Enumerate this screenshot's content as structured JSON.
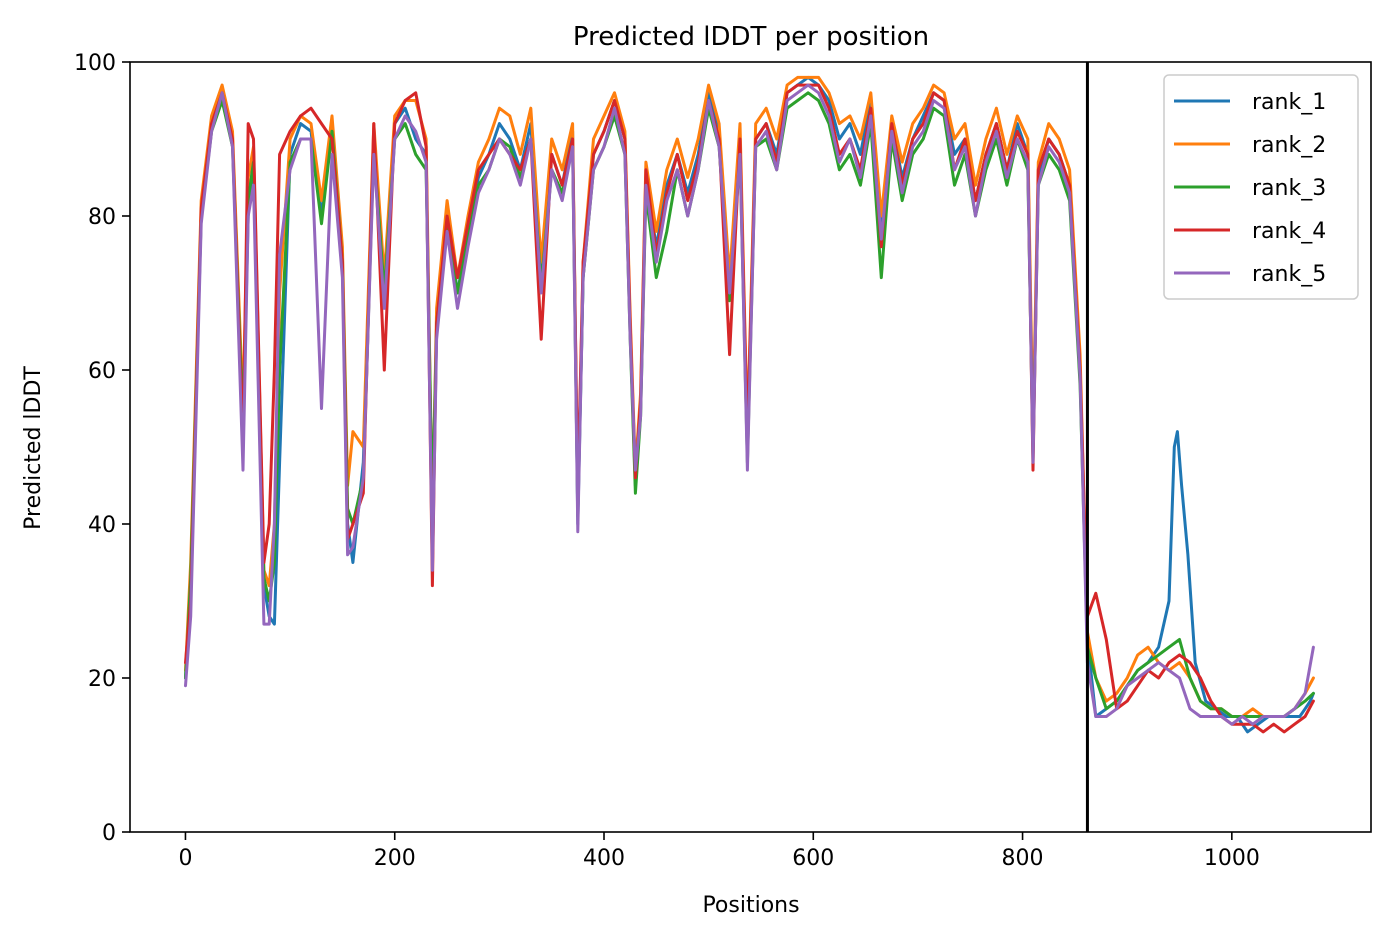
{
  "chart_data": {
    "type": "line",
    "title": "Predicted lDDT per position",
    "xlabel": "Positions",
    "ylabel": "Predicted lDDT",
    "xlim": [
      -53,
      1133
    ],
    "ylim": [
      0,
      100
    ],
    "xticks": [
      0,
      200,
      400,
      600,
      800,
      1000
    ],
    "yticks": [
      0,
      20,
      40,
      60,
      80,
      100
    ],
    "grid": false,
    "legend_position": "top-right",
    "vertical_line": {
      "x": 862,
      "color": "#000000"
    },
    "series": [
      {
        "name": "rank_1",
        "color": "#1f77b4",
        "x": [
          0,
          5,
          15,
          25,
          35,
          45,
          55,
          60,
          65,
          75,
          80,
          85,
          90,
          100,
          110,
          120,
          130,
          140,
          150,
          155,
          160,
          170,
          180,
          190,
          200,
          210,
          220,
          230,
          236,
          240,
          250,
          260,
          270,
          280,
          290,
          300,
          310,
          320,
          330,
          340,
          350,
          360,
          370,
          375,
          380,
          390,
          400,
          410,
          420,
          425,
          430,
          435,
          440,
          450,
          460,
          470,
          480,
          490,
          500,
          510,
          520,
          530,
          537,
          545,
          555,
          565,
          575,
          585,
          595,
          605,
          615,
          625,
          635,
          645,
          655,
          665,
          675,
          685,
          695,
          705,
          715,
          725,
          735,
          745,
          755,
          765,
          775,
          785,
          795,
          805,
          810,
          815,
          825,
          835,
          845,
          855,
          862,
          870,
          880,
          890,
          900,
          910,
          920,
          930,
          940,
          945,
          948,
          952,
          958,
          965,
          975,
          985,
          995,
          1005,
          1015,
          1025,
          1035,
          1045,
          1055,
          1065,
          1070,
          1075,
          1078
        ],
        "values": [
          20,
          32,
          80,
          92,
          96,
          90,
          52,
          80,
          88,
          32,
          28,
          27,
          48,
          88,
          92,
          91,
          80,
          92,
          75,
          40,
          35,
          48,
          90,
          70,
          92,
          94,
          90,
          88,
          38,
          65,
          80,
          70,
          78,
          85,
          88,
          92,
          90,
          86,
          92,
          72,
          88,
          84,
          91,
          40,
          72,
          88,
          91,
          95,
          90,
          65,
          45,
          55,
          85,
          76,
          84,
          88,
          83,
          88,
          96,
          91,
          70,
          90,
          50,
          90,
          92,
          88,
          96,
          97,
          98,
          97,
          95,
          90,
          92,
          88,
          95,
          78,
          92,
          85,
          90,
          93,
          96,
          95,
          88,
          90,
          82,
          88,
          92,
          86,
          92,
          88,
          50,
          85,
          90,
          88,
          84,
          60,
          25,
          15,
          16,
          17,
          19,
          21,
          22,
          24,
          30,
          50,
          52,
          45,
          36,
          22,
          17,
          16,
          15,
          15,
          13,
          14,
          15,
          15,
          15,
          15,
          16,
          17,
          18
        ]
      },
      {
        "name": "rank_2",
        "color": "#ff7f0e",
        "x": [
          0,
          5,
          15,
          25,
          35,
          45,
          55,
          60,
          65,
          75,
          80,
          85,
          90,
          100,
          110,
          120,
          130,
          140,
          150,
          155,
          160,
          170,
          180,
          190,
          200,
          210,
          220,
          230,
          236,
          240,
          250,
          260,
          270,
          280,
          290,
          300,
          310,
          320,
          330,
          340,
          350,
          360,
          370,
          375,
          380,
          390,
          400,
          410,
          420,
          425,
          430,
          435,
          440,
          450,
          460,
          470,
          480,
          490,
          500,
          510,
          520,
          530,
          537,
          545,
          555,
          565,
          575,
          585,
          595,
          605,
          615,
          625,
          635,
          645,
          655,
          665,
          675,
          685,
          695,
          705,
          715,
          725,
          735,
          745,
          755,
          765,
          775,
          785,
          795,
          805,
          810,
          815,
          825,
          835,
          845,
          855,
          862,
          870,
          880,
          890,
          900,
          910,
          920,
          930,
          940,
          950,
          960,
          970,
          980,
          990,
          1000,
          1010,
          1020,
          1030,
          1040,
          1050,
          1060,
          1070,
          1078
        ],
        "values": [
          21,
          35,
          82,
          93,
          97,
          91,
          55,
          85,
          89,
          34,
          32,
          40,
          70,
          90,
          93,
          92,
          82,
          93,
          76,
          45,
          52,
          50,
          92,
          72,
          93,
          95,
          95,
          90,
          40,
          68,
          82,
          72,
          80,
          87,
          90,
          94,
          93,
          88,
          94,
          74,
          90,
          86,
          92,
          42,
          74,
          90,
          93,
          96,
          91,
          67,
          47,
          57,
          87,
          78,
          86,
          90,
          85,
          90,
          97,
          92,
          72,
          92,
          52,
          92,
          94,
          90,
          97,
          98,
          98,
          98,
          96,
          92,
          93,
          90,
          96,
          80,
          93,
          87,
          92,
          94,
          97,
          96,
          90,
          92,
          84,
          90,
          94,
          88,
          93,
          90,
          52,
          87,
          92,
          90,
          86,
          62,
          26,
          20,
          17,
          18,
          20,
          23,
          24,
          22,
          21,
          22,
          20,
          17,
          16,
          16,
          15,
          15,
          16,
          15,
          15,
          15,
          16,
          18,
          20
        ]
      },
      {
        "name": "rank_3",
        "color": "#2ca02c",
        "x": [
          0,
          5,
          15,
          25,
          35,
          45,
          55,
          60,
          65,
          75,
          80,
          85,
          90,
          100,
          110,
          120,
          130,
          140,
          150,
          155,
          160,
          170,
          180,
          190,
          200,
          210,
          220,
          230,
          236,
          240,
          250,
          260,
          270,
          280,
          290,
          300,
          310,
          320,
          330,
          340,
          350,
          360,
          370,
          375,
          380,
          390,
          400,
          410,
          420,
          425,
          430,
          435,
          440,
          450,
          460,
          470,
          480,
          490,
          500,
          510,
          520,
          530,
          537,
          545,
          555,
          565,
          575,
          585,
          595,
          605,
          615,
          625,
          635,
          645,
          655,
          665,
          675,
          685,
          695,
          705,
          715,
          725,
          735,
          745,
          755,
          765,
          775,
          785,
          795,
          805,
          810,
          815,
          825,
          835,
          845,
          855,
          862,
          870,
          880,
          890,
          900,
          910,
          920,
          930,
          940,
          950,
          960,
          970,
          980,
          990,
          1000,
          1010,
          1020,
          1030,
          1040,
          1050,
          1060,
          1070,
          1078
        ],
        "values": [
          20,
          33,
          80,
          91,
          95,
          89,
          53,
          82,
          87,
          33,
          30,
          35,
          60,
          87,
          90,
          90,
          79,
          91,
          74,
          42,
          40,
          46,
          89,
          70,
          90,
          92,
          88,
          86,
          42,
          66,
          79,
          70,
          77,
          84,
          86,
          90,
          89,
          85,
          90,
          71,
          86,
          83,
          89,
          41,
          72,
          86,
          89,
          93,
          88,
          64,
          44,
          54,
          83,
          72,
          78,
          86,
          80,
          86,
          94,
          89,
          69,
          88,
          48,
          89,
          90,
          86,
          94,
          95,
          96,
          95,
          92,
          86,
          88,
          84,
          92,
          72,
          90,
          82,
          88,
          90,
          94,
          93,
          84,
          88,
          80,
          86,
          90,
          84,
          90,
          86,
          49,
          84,
          88,
          86,
          82,
          58,
          24,
          20,
          16,
          17,
          19,
          21,
          22,
          23,
          24,
          25,
          20,
          17,
          16,
          16,
          15,
          15,
          15,
          15,
          15,
          15,
          16,
          17,
          18
        ]
      },
      {
        "name": "rank_4",
        "color": "#d62728",
        "x": [
          0,
          5,
          15,
          25,
          35,
          45,
          55,
          60,
          65,
          75,
          80,
          85,
          90,
          100,
          110,
          120,
          130,
          140,
          150,
          155,
          160,
          170,
          180,
          190,
          200,
          210,
          220,
          230,
          236,
          240,
          250,
          260,
          270,
          280,
          290,
          300,
          310,
          320,
          330,
          340,
          350,
          360,
          370,
          375,
          380,
          390,
          400,
          410,
          420,
          425,
          430,
          435,
          440,
          450,
          460,
          470,
          480,
          490,
          500,
          510,
          520,
          530,
          537,
          545,
          555,
          565,
          575,
          585,
          595,
          605,
          615,
          625,
          635,
          645,
          655,
          665,
          675,
          685,
          695,
          705,
          715,
          725,
          735,
          745,
          755,
          765,
          775,
          785,
          795,
          805,
          810,
          815,
          825,
          835,
          845,
          855,
          862,
          870,
          880,
          890,
          900,
          910,
          920,
          930,
          940,
          950,
          960,
          970,
          980,
          990,
          1000,
          1010,
          1020,
          1030,
          1040,
          1050,
          1060,
          1070,
          1078
        ],
        "values": [
          22,
          30,
          81,
          92,
          96,
          90,
          50,
          92,
          90,
          35,
          40,
          60,
          88,
          91,
          93,
          94,
          92,
          90,
          74,
          38,
          40,
          44,
          92,
          60,
          92,
          95,
          96,
          89,
          32,
          66,
          80,
          72,
          79,
          86,
          88,
          90,
          88,
          86,
          90,
          64,
          88,
          84,
          90,
          44,
          74,
          88,
          91,
          95,
          90,
          66,
          46,
          56,
          86,
          75,
          83,
          88,
          82,
          87,
          95,
          90,
          62,
          90,
          51,
          90,
          92,
          87,
          96,
          97,
          97,
          97,
          94,
          88,
          90,
          86,
          94,
          76,
          92,
          84,
          90,
          92,
          96,
          95,
          86,
          90,
          82,
          88,
          92,
          86,
          91,
          88,
          47,
          86,
          90,
          88,
          84,
          60,
          28,
          31,
          25,
          16,
          17,
          19,
          21,
          20,
          22,
          23,
          22,
          20,
          17,
          15,
          14,
          14,
          14,
          13,
          14,
          13,
          14,
          15,
          17
        ]
      },
      {
        "name": "rank_5",
        "color": "#9467bd",
        "x": [
          0,
          5,
          15,
          25,
          35,
          45,
          55,
          60,
          65,
          75,
          80,
          85,
          90,
          100,
          110,
          120,
          130,
          140,
          150,
          155,
          160,
          170,
          180,
          190,
          200,
          210,
          220,
          230,
          236,
          240,
          250,
          260,
          270,
          280,
          290,
          300,
          310,
          320,
          330,
          340,
          350,
          360,
          370,
          375,
          380,
          390,
          400,
          410,
          420,
          425,
          430,
          435,
          440,
          450,
          460,
          470,
          480,
          490,
          500,
          510,
          520,
          530,
          537,
          545,
          555,
          565,
          575,
          585,
          595,
          605,
          615,
          625,
          635,
          645,
          655,
          665,
          675,
          685,
          695,
          705,
          715,
          725,
          735,
          745,
          755,
          765,
          775,
          785,
          795,
          805,
          810,
          815,
          825,
          835,
          845,
          855,
          862,
          870,
          880,
          890,
          900,
          910,
          920,
          930,
          940,
          950,
          960,
          970,
          980,
          990,
          1000,
          1010,
          1020,
          1030,
          1040,
          1050,
          1060,
          1070,
          1078
        ],
        "values": [
          19,
          28,
          79,
          91,
          96,
          89,
          47,
          80,
          84,
          27,
          27,
          40,
          75,
          86,
          90,
          90,
          55,
          88,
          72,
          36,
          37,
          46,
          88,
          68,
          90,
          93,
          91,
          87,
          34,
          64,
          78,
          68,
          76,
          83,
          86,
          90,
          88,
          84,
          90,
          70,
          86,
          82,
          89,
          39,
          72,
          86,
          89,
          94,
          88,
          64,
          47,
          54,
          84,
          74,
          82,
          86,
          80,
          86,
          95,
          89,
          70,
          88,
          47,
          89,
          91,
          86,
          95,
          96,
          97,
          96,
          93,
          87,
          90,
          85,
          93,
          77,
          91,
          83,
          89,
          91,
          95,
          94,
          86,
          89,
          80,
          87,
          91,
          85,
          90,
          87,
          48,
          84,
          89,
          87,
          83,
          59,
          22,
          15,
          15,
          16,
          19,
          20,
          21,
          22,
          21,
          20,
          16,
          15,
          15,
          15,
          14,
          15,
          14,
          15,
          15,
          15,
          16,
          18,
          24
        ]
      }
    ]
  }
}
